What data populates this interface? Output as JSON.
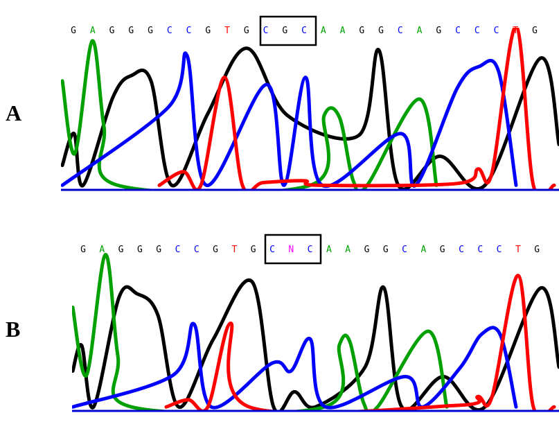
{
  "colors": {
    "A": "#00a000",
    "C": "#0000ff",
    "G": "#000000",
    "T": "#ff0000",
    "N": "#ff00ff",
    "axis": "#0000cc",
    "box": "#000000"
  },
  "panels": [
    {
      "label": "A",
      "sequence": [
        "G",
        "A",
        "G",
        "G",
        "G",
        "C",
        "C",
        "G",
        "T",
        "G",
        "C",
        "G",
        "C",
        "A",
        "A",
        "G",
        "G",
        "C",
        "A",
        "G",
        "C",
        "C",
        "C",
        "T",
        "G"
      ],
      "boxed_positions": [
        10,
        12
      ]
    },
    {
      "label": "B",
      "sequence": [
        "G",
        "A",
        "G",
        "G",
        "G",
        "C",
        "C",
        "G",
        "T",
        "G",
        "C",
        "N",
        "C",
        "A",
        "A",
        "G",
        "G",
        "C",
        "A",
        "G",
        "C",
        "C",
        "C",
        "T",
        "G"
      ],
      "boxed_positions": [
        10,
        12
      ]
    }
  ],
  "traces": [
    {
      "panel": 0,
      "channels": {
        "G": [
          [
            90,
            0.27
          ],
          [
            107,
            0.62
          ],
          [
            120,
            0.05
          ],
          [
            163,
            1.02
          ],
          [
            190,
            1.26
          ],
          [
            218,
            1.2
          ],
          [
            248,
            0.05
          ],
          [
            300,
            0.84
          ],
          [
            356,
            1.56
          ],
          [
            415,
            0.82
          ],
          [
            518,
            0.6
          ],
          [
            547,
            1.54
          ],
          [
            575,
            0.05
          ],
          [
            635,
            0.37
          ],
          [
            700,
            0.05
          ],
          [
            780,
            1.45
          ],
          [
            807,
            0.5
          ]
        ],
        "A": [
          [
            90,
            1.2
          ],
          [
            108,
            0.4
          ],
          [
            133,
            1.64
          ],
          [
            150,
            0.7
          ],
          [
            170,
            0.05
          ],
          [
            448,
            0.05
          ],
          [
            468,
            0.82
          ],
          [
            490,
            0.8
          ],
          [
            510,
            0.1
          ],
          [
            530,
            0.05
          ],
          [
            605,
            1.0
          ],
          [
            630,
            0.05
          ]
        ],
        "C": [
          [
            90,
            0.05
          ],
          [
            243,
            0.91
          ],
          [
            270,
            1.48
          ],
          [
            298,
            0.05
          ],
          [
            385,
            1.16
          ],
          [
            410,
            0.05
          ],
          [
            441,
            1.24
          ],
          [
            465,
            0.05
          ],
          [
            578,
            0.62
          ],
          [
            600,
            0.05
          ],
          [
            660,
            1.12
          ],
          [
            692,
            1.36
          ],
          [
            720,
            1.3
          ],
          [
            745,
            0.05
          ]
        ],
        "T": [
          [
            230,
            0.05
          ],
          [
            265,
            0.2
          ],
          [
            290,
            0.05
          ],
          [
            324,
            1.24
          ],
          [
            350,
            0.05
          ],
          [
            380,
            0.08
          ],
          [
            440,
            0.1
          ],
          [
            460,
            0.05
          ],
          [
            660,
            0.07
          ],
          [
            690,
            0.23
          ],
          [
            710,
            0.18
          ],
          [
            745,
            1.8
          ],
          [
            770,
            0.05
          ],
          [
            800,
            0.05
          ]
        ]
      }
    },
    {
      "panel": 1,
      "channels": {
        "G": [
          [
            105,
            0.5
          ],
          [
            118,
            0.82
          ],
          [
            135,
            0.05
          ],
          [
            172,
            1.43
          ],
          [
            198,
            1.47
          ],
          [
            228,
            1.2
          ],
          [
            258,
            0.05
          ],
          [
            308,
            0.9
          ],
          [
            364,
            1.62
          ],
          [
            395,
            0.05
          ],
          [
            425,
            0.24
          ],
          [
            455,
            0.05
          ],
          [
            527,
            0.55
          ],
          [
            554,
            1.55
          ],
          [
            580,
            0.05
          ],
          [
            640,
            0.43
          ],
          [
            700,
            0.05
          ],
          [
            780,
            1.54
          ],
          [
            807,
            0.55
          ]
        ],
        "A": [
          [
            105,
            1.3
          ],
          [
            125,
            0.45
          ],
          [
            152,
            1.96
          ],
          [
            170,
            0.7
          ],
          [
            190,
            0.05
          ],
          [
            468,
            0.05
          ],
          [
            490,
            0.83
          ],
          [
            505,
            0.87
          ],
          [
            525,
            0.1
          ],
          [
            545,
            0.05
          ],
          [
            618,
            1.0
          ],
          [
            645,
            0.05
          ]
        ],
        "C": [
          [
            105,
            0.05
          ],
          [
            250,
            0.45
          ],
          [
            280,
            1.09
          ],
          [
            305,
            0.05
          ],
          [
            393,
            0.6
          ],
          [
            420,
            0.5
          ],
          [
            448,
            0.9
          ],
          [
            470,
            0.05
          ],
          [
            585,
            0.43
          ],
          [
            610,
            0.05
          ],
          [
            665,
            0.55
          ],
          [
            695,
            0.96
          ],
          [
            722,
            0.96
          ],
          [
            745,
            0.05
          ]
        ],
        "T": [
          [
            240,
            0.05
          ],
          [
            272,
            0.14
          ],
          [
            300,
            0.05
          ],
          [
            333,
            1.1
          ],
          [
            360,
            0.05
          ],
          [
            660,
            0.07
          ],
          [
            690,
            0.18
          ],
          [
            710,
            0.17
          ],
          [
            748,
            1.7
          ],
          [
            770,
            0.05
          ],
          [
            800,
            0.05
          ]
        ]
      }
    }
  ]
}
